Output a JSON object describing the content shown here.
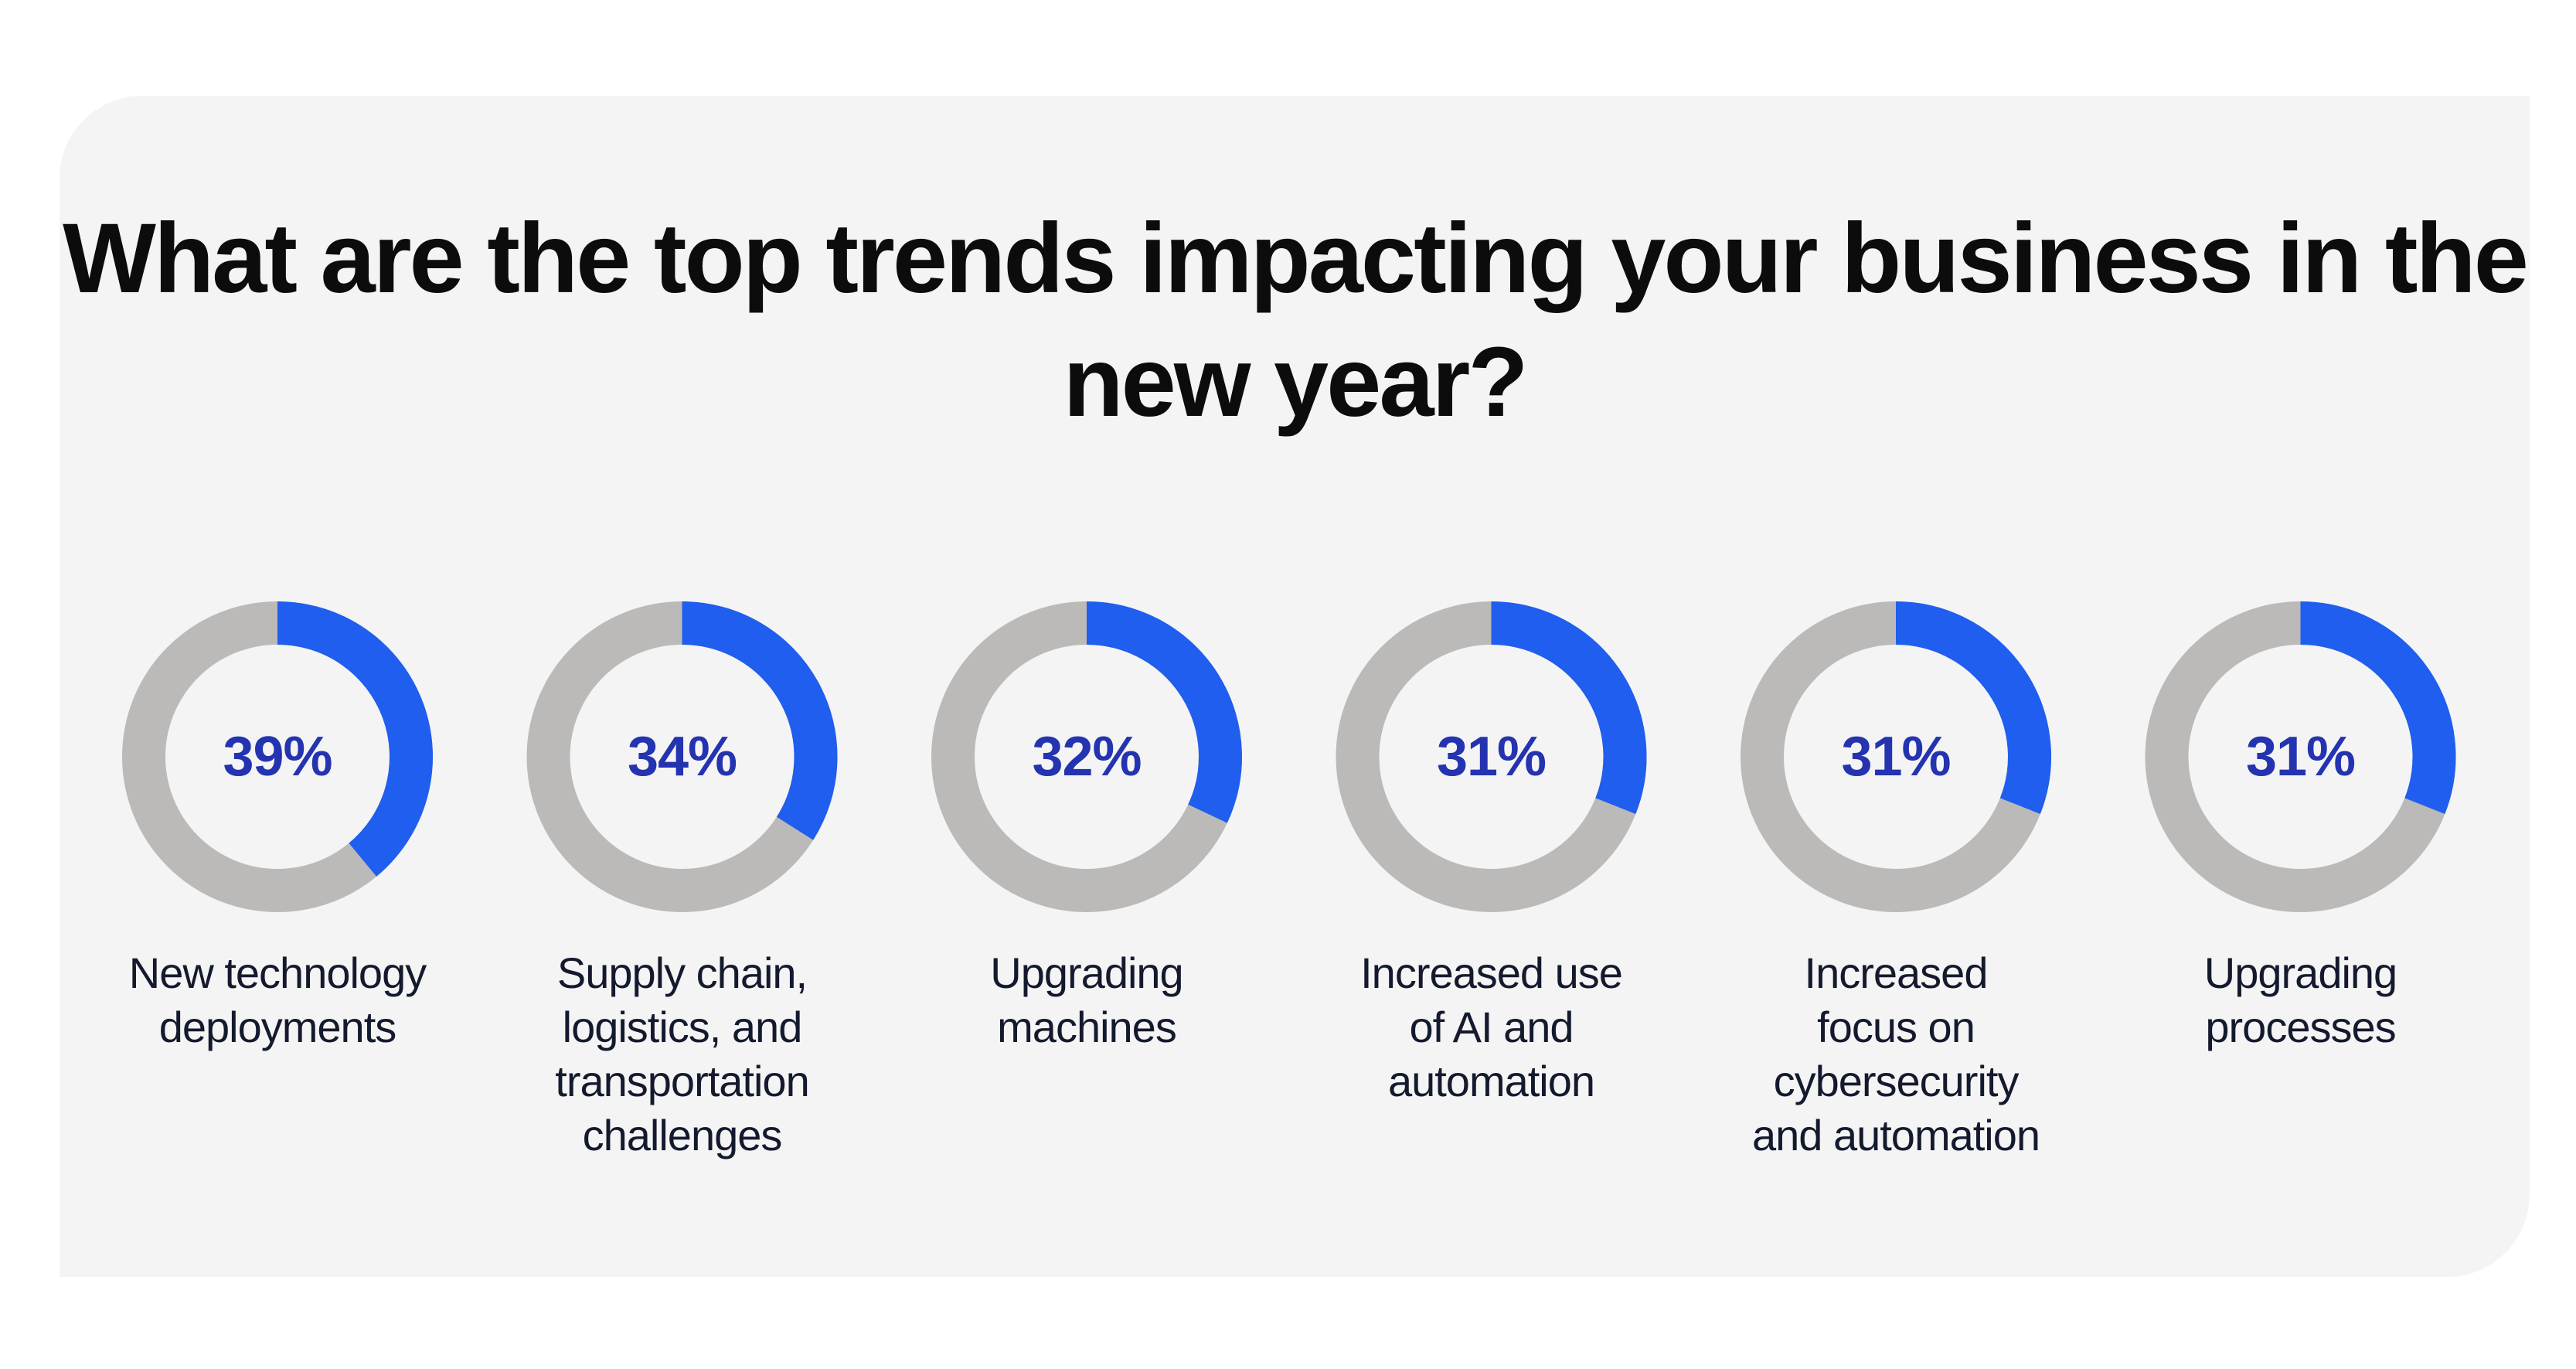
{
  "chart_data": {
    "type": "donut",
    "title": "What are the top trends impacting your business in the new year?",
    "unit": "%",
    "categories": [
      "New technology deployments",
      "Supply chain, logistics, and transportation challenges",
      "Upgrading machines",
      "Increased use of AI and automation",
      "Increased focus on cybersecurity and automation",
      "Upgrading processes"
    ],
    "label_lines": [
      [
        "New technology",
        "deployments"
      ],
      [
        "Supply chain,",
        "logistics, and",
        "transportation",
        "challenges"
      ],
      [
        "Upgrading",
        "machines"
      ],
      [
        "Increased use",
        "of AI and",
        "automation"
      ],
      [
        "Increased",
        "focus on",
        "cybersecurity",
        "and automation"
      ],
      [
        "Upgrading",
        "processes"
      ]
    ],
    "values": [
      39,
      34,
      32,
      31,
      31,
      31
    ],
    "value_labels": [
      "39%",
      "34%",
      "32%",
      "31%",
      "31%",
      "31%"
    ],
    "colors": {
      "value": "#1f5eee",
      "remainder": "#bbbab8",
      "value_text": "#2433b0",
      "background": "#f4f4f4"
    }
  }
}
